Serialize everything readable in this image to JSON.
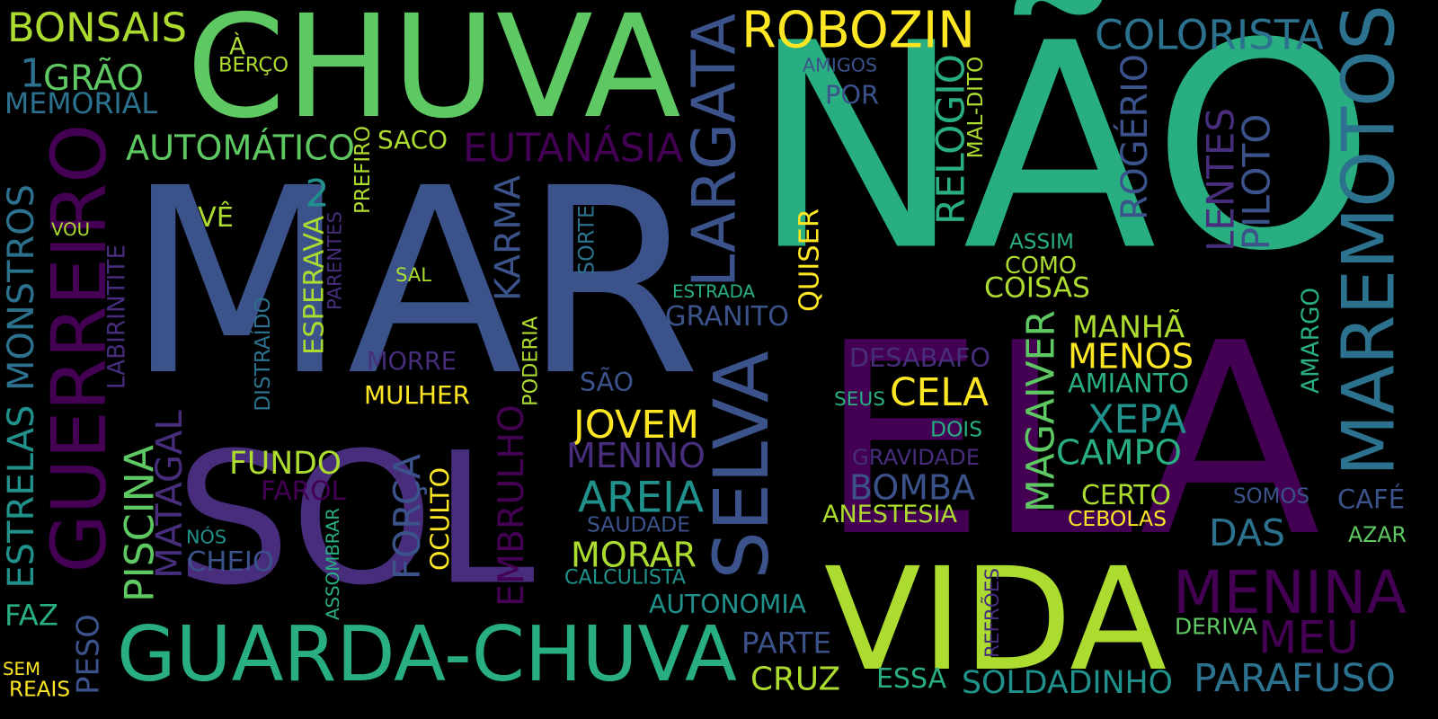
{
  "palette": {
    "dark_purple": "#440154",
    "purple": "#472d7b",
    "indigo": "#3b528b",
    "blue": "#2c728e",
    "teal": "#21918c",
    "green": "#28ae80",
    "lime": "#5ec962",
    "yellow_green": "#addc30",
    "yellow": "#fde725",
    "background": "#000000"
  },
  "words": [
    {
      "text": "MAR"
    },
    {
      "text": "NÃO"
    },
    {
      "text": "ELA"
    },
    {
      "text": "SOL"
    },
    {
      "text": "CHUVA"
    },
    {
      "text": "VIDA"
    },
    {
      "text": "GUARDA-CHUVA"
    },
    {
      "text": "MAREMOTOS"
    },
    {
      "text": "GUERREIRO"
    },
    {
      "text": "SELVA"
    },
    {
      "text": "LARGATA"
    },
    {
      "text": "ROBOZIN"
    },
    {
      "text": "MENINA"
    },
    {
      "text": "COLORISTA"
    },
    {
      "text": "BONSAIS"
    },
    {
      "text": "1"
    },
    {
      "text": "GRÃO"
    },
    {
      "text": "MEMORIAL"
    },
    {
      "text": "AUTOMÁTICO"
    },
    {
      "text": "EUTANÁSIA"
    },
    {
      "text": "ESTRELAS"
    },
    {
      "text": "MONSTROS"
    },
    {
      "text": "PISCINA"
    },
    {
      "text": "MATAGAL"
    },
    {
      "text": "EMBRULHO"
    },
    {
      "text": "KARMA"
    },
    {
      "text": "FORÇA"
    },
    {
      "text": "JOVEM"
    },
    {
      "text": "MENINO"
    },
    {
      "text": "AREIA"
    },
    {
      "text": "MORAR"
    },
    {
      "text": "CELA"
    },
    {
      "text": "MENOS"
    },
    {
      "text": "MANHÃ"
    },
    {
      "text": "MAGAIVER"
    },
    {
      "text": "BOMBA"
    },
    {
      "text": "XEPA"
    },
    {
      "text": "CAMPO"
    },
    {
      "text": "PARAFUSO"
    },
    {
      "text": "SOLDADINHO"
    },
    {
      "text": "CRUZ"
    },
    {
      "text": "MEU"
    },
    {
      "text": "DAS"
    },
    {
      "text": "RELÓGIO"
    },
    {
      "text": "ROGÉRIO"
    },
    {
      "text": "LENTES"
    },
    {
      "text": "PILOTO"
    },
    {
      "text": "FUNDO"
    },
    {
      "text": "ESPERAVA"
    },
    {
      "text": "2"
    },
    {
      "text": "GRANITO"
    },
    {
      "text": "QUISER"
    },
    {
      "text": "COMO"
    },
    {
      "text": "COISAS"
    },
    {
      "text": "DESABAFO"
    },
    {
      "text": "ANESTESIA"
    },
    {
      "text": "OCULTO"
    },
    {
      "text": "MORRE"
    },
    {
      "text": "MULHER"
    },
    {
      "text": "SÃO"
    },
    {
      "text": "AUTONOMIA"
    },
    {
      "text": "PARTE"
    },
    {
      "text": "ESSA"
    },
    {
      "text": "CHEIO"
    },
    {
      "text": "FAROL"
    },
    {
      "text": "PESO"
    },
    {
      "text": "AMIANTO"
    },
    {
      "text": "AMARGO"
    },
    {
      "text": "CAFÉ"
    },
    {
      "text": "SACO"
    },
    {
      "text": "VÊ"
    },
    {
      "text": "POR"
    },
    {
      "text": "CERTO"
    },
    {
      "text": "CEBOLAS"
    },
    {
      "text": "FAZ"
    },
    {
      "text": "À"
    },
    {
      "text": "BERÇO"
    },
    {
      "text": "AMIGOS"
    },
    {
      "text": "MAL-DITO"
    },
    {
      "text": "PREFIRO"
    },
    {
      "text": "LABIRINTITE"
    },
    {
      "text": "VOU"
    },
    {
      "text": "PARENTES"
    },
    {
      "text": "SAL"
    },
    {
      "text": "SORTE"
    },
    {
      "text": "ESTRADA"
    },
    {
      "text": "PODERIA"
    },
    {
      "text": "DISTRAÍDO"
    },
    {
      "text": "ASSIM"
    },
    {
      "text": "SEUS"
    },
    {
      "text": "DOIS"
    },
    {
      "text": "GRAVIDADE"
    },
    {
      "text": "SOMOS"
    },
    {
      "text": "AZAR"
    },
    {
      "text": "DERIVA"
    },
    {
      "text": "REFRÕES"
    },
    {
      "text": "SAUDADE"
    },
    {
      "text": "CALCULISTA"
    },
    {
      "text": "ASSOMBRAR"
    },
    {
      "text": "NÓS"
    },
    {
      "text": "SEM"
    },
    {
      "text": "REAIS"
    }
  ]
}
